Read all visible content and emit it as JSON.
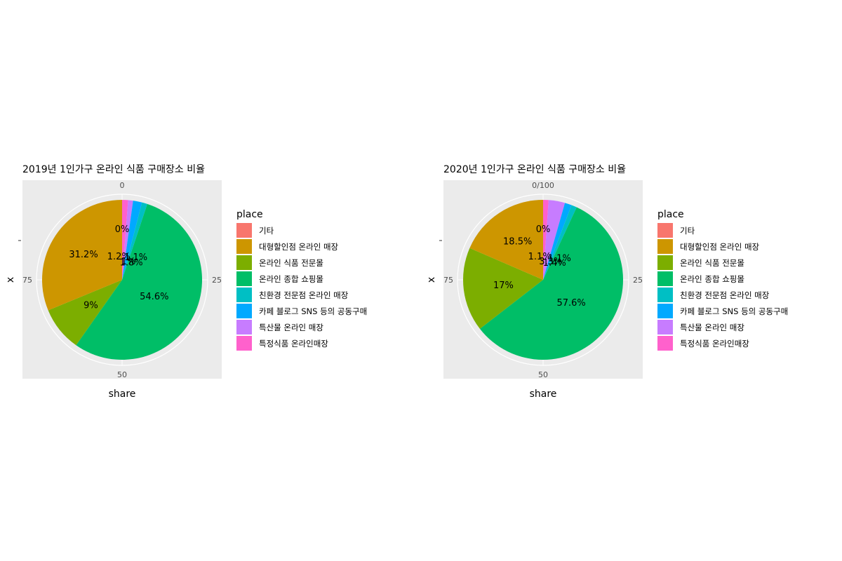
{
  "chart_data": [
    {
      "type": "pie",
      "title": "2019년 1인가구 온라인 식품 구매장소 비율",
      "xlabel": "share",
      "ylabel": "x",
      "theta_ticks": [
        "0",
        "25",
        "50",
        "75"
      ],
      "legend_title": "place",
      "legend_position": "right",
      "categories": [
        "기타",
        "대형할인점 온라인 매장",
        "온라인 식품 전문몰",
        "온라인 종합 쇼핑몰",
        "친환경 전문점 온라인 매장",
        "카페 블로그 SNS 등의 공동구매",
        "특산물 온라인 매장",
        "특정식품 온라인매장"
      ],
      "values": [
        0,
        31.2,
        9,
        54.6,
        1.1,
        1.8,
        1,
        1.2
      ],
      "labels": [
        "0%",
        "31.2%",
        "9%",
        "54.6%",
        "1.1%",
        "1.8%",
        "1%",
        "1.2%"
      ],
      "colors": [
        "#F8766D",
        "#CD9600",
        "#7CAE00",
        "#00BE67",
        "#00BFC4",
        "#00A9FF",
        "#C77CFF",
        "#FF61CC"
      ]
    },
    {
      "type": "pie",
      "title": "2020년 1인가구 온라인 식품 구매장소 비율",
      "xlabel": "share",
      "ylabel": "x",
      "theta_ticks": [
        "0/100",
        "25",
        "50",
        "75"
      ],
      "legend_title": "place",
      "legend_position": "right",
      "categories": [
        "기타",
        "대형할인점 온라인 매장",
        "온라인 식품 전문몰",
        "온라인 종합 쇼핑몰",
        "친환경 전문점 온라인 매장",
        "카페 블로그 SNS 등의 공동구매",
        "특산물 온라인 매장",
        "특정식품 온라인매장"
      ],
      "values": [
        0,
        18.5,
        17,
        57.6,
        1.1,
        1.4,
        3.3,
        1.1
      ],
      "labels": [
        "0%",
        "18.5%",
        "17%",
        "57.6%",
        "1.1%",
        "1.4%",
        "3.3%",
        "1.1%"
      ],
      "colors": [
        "#F8766D",
        "#CD9600",
        "#7CAE00",
        "#00BE67",
        "#00BFC4",
        "#00A9FF",
        "#C77CFF",
        "#FF61CC"
      ]
    }
  ]
}
